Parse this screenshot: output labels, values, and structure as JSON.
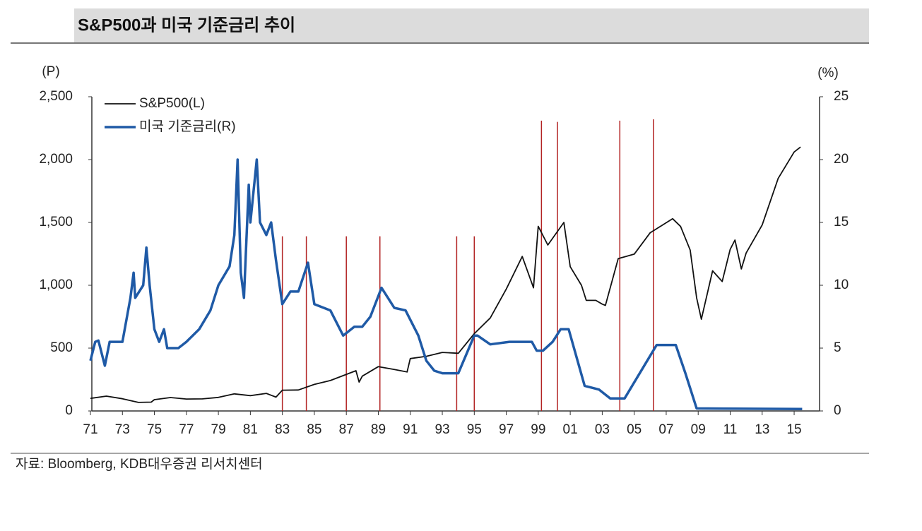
{
  "chart_data": {
    "type": "line",
    "title": "S&P500과 미국 기준금리 추이",
    "ylabel": "(P)",
    "y2label": "(%)",
    "source": "자료: Bloomberg, KDB대우증권 리서치센터",
    "xlim": [
      1971,
      2016.5
    ],
    "xticks": [
      {
        "value": 1971,
        "label": "71"
      },
      {
        "value": 1973,
        "label": "73"
      },
      {
        "value": 1975,
        "label": "75"
      },
      {
        "value": 1977,
        "label": "77"
      },
      {
        "value": 1979,
        "label": "79"
      },
      {
        "value": 1981,
        "label": "81"
      },
      {
        "value": 1983,
        "label": "83"
      },
      {
        "value": 1985,
        "label": "85"
      },
      {
        "value": 1987,
        "label": "87"
      },
      {
        "value": 1989,
        "label": "89"
      },
      {
        "value": 1991,
        "label": "91"
      },
      {
        "value": 1993,
        "label": "93"
      },
      {
        "value": 1995,
        "label": "95"
      },
      {
        "value": 1997,
        "label": "97"
      },
      {
        "value": 1999,
        "label": "99"
      },
      {
        "value": 2001,
        "label": "01"
      },
      {
        "value": 2003,
        "label": "03"
      },
      {
        "value": 2005,
        "label": "05"
      },
      {
        "value": 2007,
        "label": "07"
      },
      {
        "value": 2009,
        "label": "09"
      },
      {
        "value": 2011,
        "label": "11"
      },
      {
        "value": 2013,
        "label": "13"
      },
      {
        "value": 2015,
        "label": "15"
      }
    ],
    "ylim": [
      0,
      2500
    ],
    "yticks": [
      0,
      500,
      {
        "value": 1000,
        "label": "1,000"
      },
      {
        "value": 1500,
        "label": "1,500"
      },
      {
        "value": 2000,
        "label": "2,000"
      },
      {
        "value": 2500,
        "label": "2,500"
      }
    ],
    "y2lim": [
      0,
      25
    ],
    "y2ticks": [
      0,
      5,
      10,
      15,
      20,
      25
    ],
    "legend": "top-left",
    "event_color": "#b22222",
    "event_lines": [
      {
        "x": 1983.0,
        "top": 1390
      },
      {
        "x": 1984.5,
        "top": 1390
      },
      {
        "x": 1987.0,
        "top": 1390
      },
      {
        "x": 1989.1,
        "top": 1390
      },
      {
        "x": 1993.9,
        "top": 1390
      },
      {
        "x": 1995.0,
        "top": 1390
      },
      {
        "x": 1999.2,
        "top": 2310
      },
      {
        "x": 2000.2,
        "top": 2300
      },
      {
        "x": 2004.1,
        "top": 2310
      },
      {
        "x": 2006.2,
        "top": 2320
      }
    ],
    "series": [
      {
        "name": "S&P500(L)",
        "color": "#111111",
        "axis": "y",
        "x": [
          1971,
          1972,
          1973,
          1974,
          1974.8,
          1975,
          1976,
          1977,
          1978,
          1979,
          1980,
          1981,
          1982,
          1982.6,
          1983,
          1984,
          1985,
          1986,
          1987.6,
          1987.8,
          1988,
          1989,
          1990,
          1990.8,
          1991,
          1992,
          1993,
          1994,
          1995,
          1996,
          1997,
          1998,
          1998.7,
          1999,
          1999.6,
          2000.6,
          2001,
          2001.7,
          2002,
          2002.6,
          2003.0,
          2003.2,
          2004,
          2005,
          2006,
          2007.4,
          2007.9,
          2008.5,
          2008.9,
          2009.2,
          2009.9,
          2010.5,
          2011,
          2011.3,
          2011.7,
          2012,
          2013,
          2014,
          2015,
          2015.4
        ],
        "values": [
          100,
          118,
          97,
          68,
          70,
          90,
          107,
          95,
          96,
          108,
          136,
          122,
          140,
          110,
          165,
          167,
          211,
          242,
          320,
          230,
          277,
          353,
          330,
          310,
          417,
          435,
          466,
          459,
          615,
          740,
          970,
          1229,
          980,
          1469,
          1320,
          1500,
          1148,
          1000,
          880,
          880,
          850,
          840,
          1212,
          1248,
          1418,
          1530,
          1468,
          1280,
          900,
          730,
          1115,
          1030,
          1286,
          1360,
          1130,
          1257,
          1480,
          1850,
          2060,
          2100
        ]
      },
      {
        "name": "미국 기준금리(R)",
        "color": "#1f5aa6",
        "axis": "y2",
        "x": [
          1971,
          1971.3,
          1971.5,
          1971.9,
          1972.2,
          1973,
          1973.5,
          1973.7,
          1973.8,
          1974.3,
          1974.5,
          1974.7,
          1975,
          1975.3,
          1975.6,
          1975.8,
          1976.5,
          1977,
          1977.8,
          1978.5,
          1979,
          1979.7,
          1980,
          1980.2,
          1980.4,
          1980.6,
          1980.9,
          1981,
          1981.4,
          1981.6,
          1982,
          1982.3,
          1982.6,
          1983,
          1983.5,
          1984,
          1984.6,
          1985,
          1986,
          1986.8,
          1987.5,
          1988,
          1988.5,
          1989.2,
          1989.6,
          1990,
          1990.7,
          1991.5,
          1992,
          1992.5,
          1993,
          1994,
          1994.5,
          1995,
          1995.2,
          1996,
          1997.2,
          1998.6,
          1998.9,
          1999.3,
          1999.9,
          2000.4,
          2000.9,
          2001.9,
          2002.8,
          2003.5,
          2004.4,
          2006.4,
          2007.6,
          2008.2,
          2008.9,
          2015.5
        ],
        "values": [
          4,
          5.5,
          5.6,
          3.6,
          5.5,
          5.5,
          9,
          11,
          9,
          10,
          13,
          10,
          6.5,
          5.5,
          6.5,
          5,
          5,
          5.5,
          6.5,
          8,
          10,
          11.5,
          14,
          20,
          11,
          9,
          18,
          15,
          20,
          15,
          14,
          15,
          12,
          8.5,
          9.5,
          9.5,
          11.8,
          8.5,
          8,
          6,
          6.7,
          6.7,
          7.5,
          9.8,
          9,
          8.2,
          8,
          6,
          4,
          3.2,
          3,
          3,
          4.5,
          6,
          6,
          5.3,
          5.5,
          5.5,
          4.8,
          4.8,
          5.5,
          6.5,
          6.5,
          2,
          1.7,
          1,
          1,
          5.25,
          5.25,
          3,
          0.2,
          0.15
        ]
      }
    ]
  }
}
